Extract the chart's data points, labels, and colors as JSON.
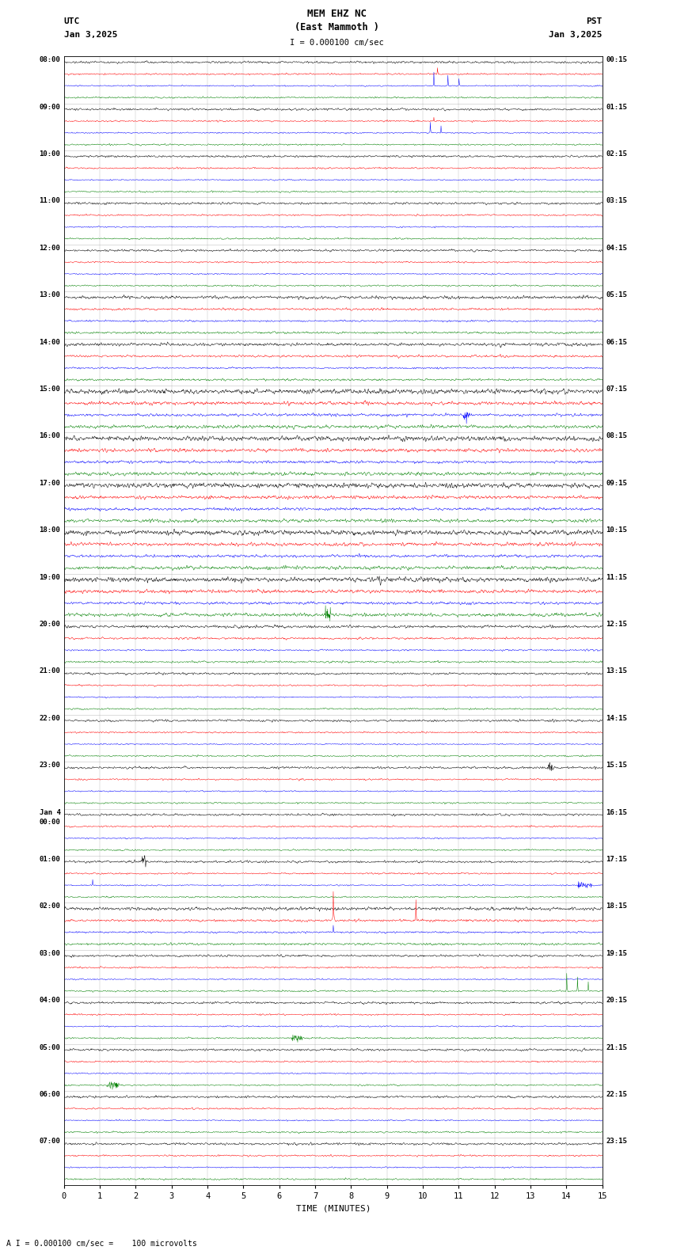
{
  "title_line1": "MEM EHZ NC",
  "title_line2": "(East Mammoth )",
  "scale_text": "I = 0.000100 cm/sec",
  "utc_label": "UTC",
  "pst_label": "PST",
  "date_left": "Jan 3,2025",
  "date_right": "Jan 3,2025",
  "bottom_label": "TIME (MINUTES)",
  "bottom_scale": "A I = 0.000100 cm/sec =    100 microvolts",
  "xlabel_ticks": [
    0,
    1,
    2,
    3,
    4,
    5,
    6,
    7,
    8,
    9,
    10,
    11,
    12,
    13,
    14,
    15
  ],
  "trace_colors": [
    "black",
    "red",
    "blue",
    "green"
  ],
  "bg_color": "#ffffff",
  "trace_linewidth": 0.35,
  "n_samples": 1800,
  "time_minutes": 15,
  "figsize": [
    8.5,
    15.84
  ],
  "dpi": 100,
  "row_labels_utc": [
    "08:00",
    "09:00",
    "10:00",
    "11:00",
    "12:00",
    "13:00",
    "14:00",
    "15:00",
    "16:00",
    "17:00",
    "18:00",
    "19:00",
    "20:00",
    "21:00",
    "22:00",
    "23:00",
    "Jan 4\n00:00",
    "01:00",
    "02:00",
    "03:00",
    "04:00",
    "05:00",
    "06:00",
    "07:00"
  ],
  "row_labels_pst": [
    "00:15",
    "01:15",
    "02:15",
    "03:15",
    "04:15",
    "05:15",
    "06:15",
    "07:15",
    "08:15",
    "09:15",
    "10:15",
    "11:15",
    "12:15",
    "13:15",
    "14:15",
    "15:15",
    "16:15",
    "17:15",
    "18:15",
    "19:15",
    "20:15",
    "21:15",
    "22:15",
    "23:15"
  ]
}
